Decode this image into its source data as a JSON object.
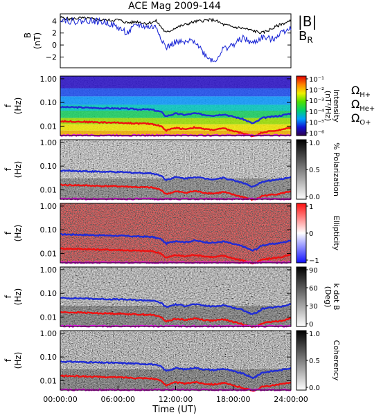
{
  "chart_data": {
    "type": "spectrogram",
    "title": "ACE Mag 2009-144",
    "xlabel": "Time (UT)",
    "x_range_hours": [
      0,
      24
    ],
    "x_tick_labels": [
      "00:00:00",
      "06:00:00",
      "12:00:00",
      "18:00:00",
      "24:00:00"
    ],
    "x_tick_hours": [
      0,
      6,
      12,
      18,
      24
    ],
    "field_panel": {
      "ylabel_1": "B",
      "ylabel_2": "(nT)",
      "ylim": [
        -3.8,
        5.2
      ],
      "y_ticks": [
        4,
        2,
        0,
        -2
      ],
      "y_tick_labels": [
        "4",
        "2",
        "0",
        "−2"
      ],
      "legend": [
        {
          "label": "|B|",
          "color": "#000000"
        },
        {
          "label": "B",
          "subscript": "R",
          "color": "#1f2bd6"
        }
      ],
      "series": [
        {
          "name": "|B|",
          "color": "#000000",
          "x": [
            0,
            1,
            2,
            3,
            4,
            5,
            6,
            7,
            8,
            9,
            10,
            11,
            12,
            13,
            14,
            15,
            16,
            17,
            18,
            19,
            20,
            21,
            22,
            23,
            24
          ],
          "y": [
            4.6,
            4.3,
            4.5,
            4.4,
            4.2,
            4.1,
            4.2,
            3.7,
            3.9,
            3.6,
            4.0,
            2.0,
            2.9,
            3.4,
            3.9,
            4.1,
            4.2,
            3.4,
            3.0,
            2.8,
            2.4,
            2.0,
            2.7,
            3.5,
            4.0
          ]
        },
        {
          "name": "B",
          "color": "#1f2bd6",
          "x": [
            0,
            1,
            2,
            3,
            4,
            5,
            6,
            7,
            8,
            9,
            10,
            11,
            12,
            13,
            14,
            15,
            16,
            17,
            18,
            19,
            20,
            21,
            22,
            23,
            24
          ],
          "y": [
            4.4,
            4.0,
            3.9,
            4.1,
            3.9,
            3.7,
            2.9,
            2.0,
            3.4,
            3.0,
            3.0,
            -0.5,
            0.5,
            0.3,
            0.8,
            -1.5,
            -2.8,
            -0.6,
            0.0,
            1.2,
            0.2,
            1.3,
            0.9,
            2.1,
            3.0
          ]
        }
      ]
    },
    "freq_ylabel_1": "f",
    "freq_ylabel_2": "(Hz)",
    "freq_ylim": [
      0.004,
      1.3
    ],
    "freq_y_ticks": [
      1.0,
      0.1,
      0.01
    ],
    "freq_y_tick_labels": [
      "1.00",
      "0.10",
      "0.01"
    ],
    "cyclotron_lines": [
      {
        "name": "Ω",
        "subscript": "H+",
        "color": "#1f2bd6",
        "x": [
          0,
          2,
          4,
          6,
          8,
          9.5,
          10.5,
          11,
          12,
          13,
          14,
          15,
          16,
          17,
          18,
          19,
          20,
          20.5,
          21,
          22,
          23,
          24
        ],
        "y": [
          0.064,
          0.062,
          0.058,
          0.056,
          0.052,
          0.05,
          0.04,
          0.026,
          0.034,
          0.03,
          0.035,
          0.03,
          0.028,
          0.032,
          0.025,
          0.02,
          0.013,
          0.016,
          0.022,
          0.025,
          0.028,
          0.035
        ]
      },
      {
        "name": "Ω",
        "subscript": "He+",
        "color": "#ee1111",
        "x": [
          0,
          2,
          4,
          6,
          8,
          9.5,
          10.5,
          11,
          12,
          13,
          14,
          15,
          16,
          17,
          18,
          19,
          20,
          20.5,
          21,
          22,
          23,
          24
        ],
        "y": [
          0.016,
          0.0155,
          0.0145,
          0.014,
          0.013,
          0.0125,
          0.01,
          0.0065,
          0.0085,
          0.0075,
          0.0088,
          0.0075,
          0.007,
          0.008,
          0.0062,
          0.005,
          0.0038,
          0.0042,
          0.0055,
          0.0062,
          0.007,
          0.0088
        ]
      },
      {
        "name": "Ω",
        "subscript": "O+",
        "color": "#e012e0",
        "x": [
          0,
          4,
          8,
          12,
          16,
          20,
          24
        ],
        "y": [
          0.0041,
          0.0041,
          0.0041,
          0.0041,
          0.0041,
          0.0041,
          0.0041
        ]
      }
    ],
    "spectral_panels": [
      {
        "name": "intensity",
        "colormap": "rainbow",
        "colorbar_label": "Intensity",
        "colorbar_sub_label": "(nT²/Hz)",
        "colorbar_ticks": [
          "10⁻¹",
          "10⁻²",
          "10⁻³",
          "10⁻⁴",
          "10⁻⁵",
          "10⁻⁶"
        ],
        "colorbar_range": [
          -6.5,
          -0.5
        ],
        "show_legend": true
      },
      {
        "name": "polarization",
        "colormap": "gray",
        "colorbar_label": "% Polarization",
        "colorbar_sub_label": "",
        "colorbar_ticks": [
          "1.0",
          "0.5",
          "0.0"
        ],
        "colorbar_range": [
          0,
          1
        ]
      },
      {
        "name": "ellipticity",
        "colormap": "bwr",
        "colorbar_label": "Ellipticity",
        "colorbar_sub_label": "",
        "colorbar_ticks": [
          "1",
          "0",
          "−1"
        ],
        "colorbar_range": [
          -1,
          1
        ]
      },
      {
        "name": "kdotb",
        "colormap": "gray",
        "colorbar_label": "k dot B",
        "colorbar_sub_label": "(Deg)",
        "colorbar_ticks": [
          "90",
          "60",
          "30",
          "0"
        ],
        "colorbar_range": [
          0,
          90
        ]
      },
      {
        "name": "coherency",
        "colormap": "gray",
        "colorbar_label": "Coherency",
        "colorbar_sub_label": "",
        "colorbar_ticks": [
          "1.0",
          "0.5",
          "0.0"
        ],
        "colorbar_range": [
          0,
          1
        ]
      }
    ]
  }
}
